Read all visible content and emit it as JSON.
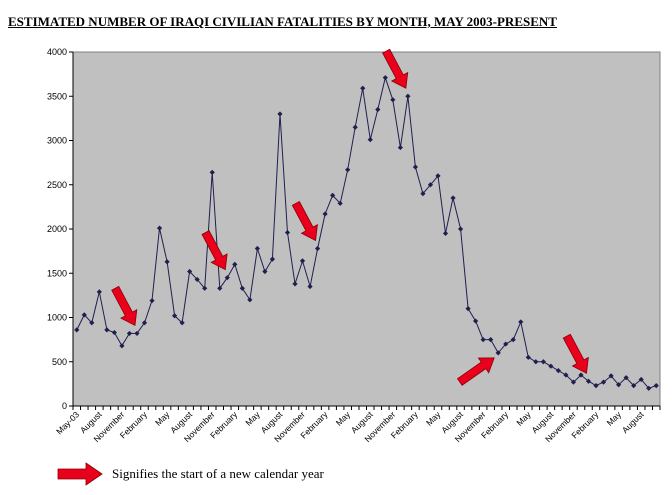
{
  "chart_data": {
    "type": "line",
    "title": "ESTIMATED NUMBER OF IRAQI CIVILIAN FATALITIES BY MONTH, MAY 2003-PRESENT",
    "xlabel": "",
    "ylabel": "",
    "ylim": [
      0,
      4000
    ],
    "yticks": [
      0,
      500,
      1000,
      1500,
      2000,
      2500,
      3000,
      3500,
      4000
    ],
    "grid": false,
    "background_color": "#c0c0c0",
    "line_color": "#1f1f4f",
    "arrow_color": "#e8001c",
    "x_tick_labels": [
      "May-03",
      "August",
      "November",
      "February",
      "May",
      "August",
      "November",
      "February",
      "May",
      "August",
      "November",
      "February",
      "May",
      "August",
      "November",
      "February",
      "May",
      "August",
      "November",
      "February",
      "May",
      "August",
      "November",
      "February",
      "May",
      "August"
    ],
    "series": [
      {
        "name": "Estimated Iraqi civilian fatalities",
        "values": [
          860,
          1030,
          940,
          1290,
          860,
          830,
          680,
          820,
          820,
          940,
          1190,
          2010,
          1630,
          1020,
          940,
          1520,
          1430,
          1330,
          2640,
          1330,
          1450,
          1600,
          1330,
          1200,
          1780,
          1520,
          1660,
          3300,
          1960,
          1380,
          1640,
          1350,
          1780,
          2170,
          2380,
          2290,
          2670,
          3150,
          3590,
          3010,
          3350,
          3710,
          3460,
          2920,
          3500,
          2700,
          2400,
          2500,
          2600,
          1950,
          2350,
          2000,
          1100,
          960,
          750,
          750,
          600,
          700,
          750,
          950,
          550,
          500,
          500,
          450,
          400,
          350,
          270,
          350,
          280,
          230,
          270,
          340,
          240,
          320,
          230,
          300,
          200,
          230
        ]
      }
    ],
    "year_start_arrows": [
      {
        "index": 8,
        "direction": "down"
      },
      {
        "index": 20,
        "direction": "down"
      },
      {
        "index": 32,
        "direction": "down"
      },
      {
        "index": 44,
        "direction": "down"
      },
      {
        "index": 56,
        "direction": "up"
      },
      {
        "index": 68,
        "direction": "down"
      }
    ],
    "legend": "Signifies the start of a new calendar year"
  }
}
